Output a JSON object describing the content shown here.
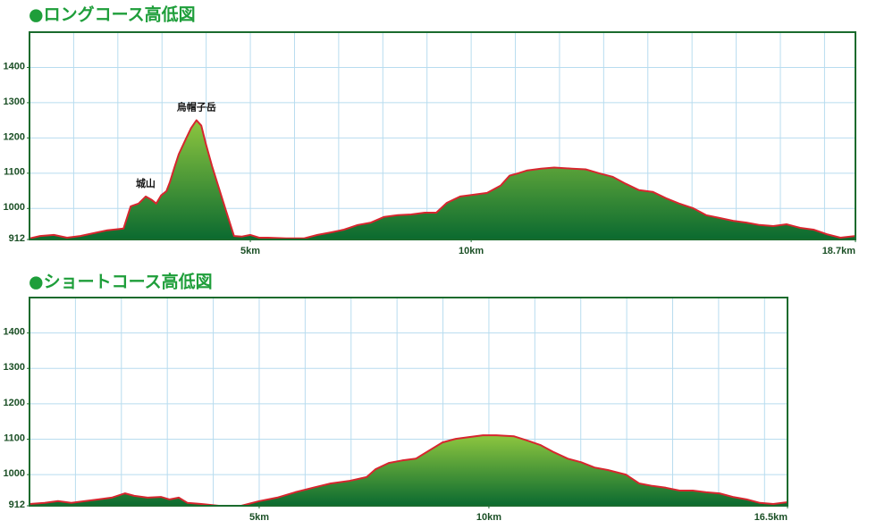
{
  "chart_data": [
    {
      "type": "area",
      "title": "●ロングコース高低図",
      "x": [
        0,
        0.24,
        0.55,
        0.85,
        1.15,
        1.46,
        1.76,
        2.13,
        2.29,
        2.47,
        2.63,
        2.77,
        2.87,
        2.98,
        3.1,
        3.18,
        3.28,
        3.38,
        3.54,
        3.66,
        3.78,
        3.89,
        3.99,
        4.13,
        4.29,
        4.45,
        4.63,
        4.8,
        5.0,
        5.2,
        5.4,
        5.81,
        6.21,
        6.52,
        6.82,
        7.12,
        7.43,
        7.73,
        8.03,
        8.34,
        8.64,
        8.95,
        9.21,
        9.45,
        9.75,
        10.06,
        10.36,
        10.67,
        10.87,
        11.07,
        11.27,
        11.58,
        11.88,
        12.28,
        12.59,
        12.89,
        13.2,
        13.5,
        13.8,
        14.11,
        14.41,
        14.71,
        15.02,
        15.32,
        15.62,
        15.93,
        16.23,
        16.53,
        16.84,
        17.14,
        17.45,
        17.75,
        18.05,
        18.36,
        18.7
      ],
      "values": [
        915,
        922,
        925,
        917,
        922,
        930,
        938,
        943,
        1006,
        1014,
        1034,
        1024,
        1014,
        1037,
        1049,
        1075,
        1116,
        1154,
        1197,
        1228,
        1250,
        1235,
        1184,
        1121,
        1057,
        993,
        922,
        920,
        925,
        917,
        917,
        915,
        915,
        925,
        932,
        940,
        953,
        960,
        976,
        981,
        983,
        988,
        988,
        1016,
        1034,
        1039,
        1044,
        1065,
        1093,
        1100,
        1108,
        1113,
        1116,
        1113,
        1111,
        1100,
        1090,
        1070,
        1052,
        1047,
        1029,
        1014,
        1001,
        981,
        973,
        965,
        960,
        953,
        950,
        955,
        945,
        940,
        927,
        917,
        922
      ],
      "xlim": [
        0,
        18.7
      ],
      "xticks": [
        {
          "value": 5,
          "label": "5km"
        },
        {
          "value": 10,
          "label": "10km"
        },
        {
          "value": 18.7,
          "label": "18.7km"
        }
      ],
      "xgrid": [
        1,
        2,
        3,
        4,
        5,
        6,
        7,
        8,
        9,
        10,
        11,
        12,
        13,
        14,
        15,
        16,
        17,
        18
      ],
      "ylim": [
        912,
        1500
      ],
      "yticks": [
        912,
        1000,
        1100,
        1200,
        1300,
        1400
      ],
      "ygrid": [
        1000,
        1100,
        1200,
        1300,
        1400
      ],
      "color": "#d7262e",
      "fill_colors": [
        "#8dc63f",
        "#0b6a30"
      ],
      "grid": true,
      "annotations": [
        {
          "text": "城山",
          "x": 2.63,
          "y": 1034
        },
        {
          "text": "烏帽子岳",
          "x": 3.78,
          "y": 1250
        }
      ]
    },
    {
      "type": "area",
      "title": "●ショートコース高低図",
      "x": [
        0,
        0.33,
        0.62,
        0.91,
        1.21,
        1.5,
        1.79,
        2.08,
        2.28,
        2.57,
        2.86,
        3.05,
        3.25,
        3.44,
        3.74,
        4.12,
        4.61,
        5.0,
        5.39,
        5.78,
        6.17,
        6.56,
        6.95,
        7.34,
        7.53,
        7.82,
        8.11,
        8.41,
        8.7,
        8.99,
        9.28,
        9.57,
        9.87,
        10.16,
        10.55,
        10.84,
        11.13,
        11.42,
        11.72,
        12.01,
        12.3,
        12.59,
        12.98,
        13.27,
        13.56,
        13.85,
        14.15,
        14.44,
        14.73,
        15.02,
        15.31,
        15.61,
        15.9,
        16.19,
        16.5
      ],
      "values": [
        917,
        920,
        925,
        920,
        925,
        930,
        935,
        947,
        940,
        935,
        937,
        930,
        935,
        920,
        917,
        912,
        912,
        925,
        935,
        950,
        963,
        975,
        982,
        993,
        1015,
        1033,
        1040,
        1045,
        1068,
        1091,
        1101,
        1106,
        1111,
        1111,
        1108,
        1096,
        1083,
        1063,
        1045,
        1035,
        1020,
        1013,
        1000,
        975,
        968,
        963,
        955,
        955,
        950,
        947,
        937,
        930,
        920,
        917,
        922
      ],
      "xlim": [
        0,
        16.5
      ],
      "xticks": [
        {
          "value": 5,
          "label": "5km"
        },
        {
          "value": 10,
          "label": "10km"
        },
        {
          "value": 16.5,
          "label": "16.5km"
        }
      ],
      "xgrid": [
        1,
        2,
        3,
        4,
        5,
        6,
        7,
        8,
        9,
        10,
        11,
        12,
        13,
        14,
        15,
        16
      ],
      "ylim": [
        912,
        1500
      ],
      "yticks": [
        912,
        1000,
        1100,
        1200,
        1300,
        1400
      ],
      "ygrid": [
        1000,
        1100,
        1200,
        1300,
        1400
      ],
      "color": "#d7262e",
      "fill_colors": [
        "#8dc63f",
        "#0b6a30"
      ],
      "grid": true
    }
  ]
}
